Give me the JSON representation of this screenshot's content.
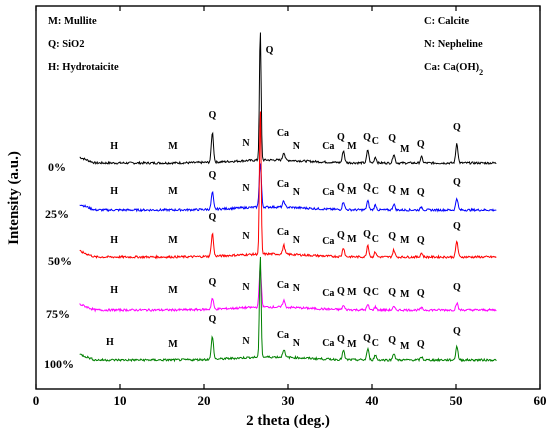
{
  "chart_data": {
    "type": "line",
    "xlabel": "2 theta (deg.)",
    "ylabel": "Intensity (a.u.)",
    "xlim": [
      0,
      60
    ],
    "xticks": [
      0,
      10,
      20,
      30,
      40,
      50,
      60
    ],
    "legend": {
      "left": [
        {
          "text": "M: Mullite"
        },
        {
          "text": "Q: SiO2"
        },
        {
          "text": "H: Hydrotaicite"
        }
      ],
      "right": [
        {
          "text": "C: Calcite"
        },
        {
          "text": "N: Nepheline"
        },
        {
          "text": "Ca:  Ca(OH)",
          "sub": "2"
        }
      ]
    },
    "series": [
      {
        "name": "0%",
        "color": "#000000",
        "baseline": 0,
        "peaks": [
          [
            21.0,
            30
          ],
          [
            26.7,
            130
          ],
          [
            29.5,
            8
          ],
          [
            36.6,
            12
          ],
          [
            39.5,
            13
          ],
          [
            40.4,
            6
          ],
          [
            42.6,
            9
          ],
          [
            45.9,
            6
          ],
          [
            50.1,
            20
          ]
        ],
        "labels": [
          [
            "H",
            9.3,
            14
          ],
          [
            "M",
            16.3,
            14
          ],
          [
            "Q",
            21.0,
            45
          ],
          [
            "N",
            25.0,
            17
          ],
          [
            "Q",
            27.8,
            110
          ],
          [
            "Ca",
            29.4,
            27
          ],
          [
            "N",
            31.0,
            14
          ],
          [
            "Ca",
            34.8,
            14
          ],
          [
            "Q",
            36.3,
            23
          ],
          [
            "M",
            37.6,
            14
          ],
          [
            "Q",
            39.4,
            23
          ],
          [
            "C",
            40.4,
            19
          ],
          [
            "Q",
            42.4,
            22
          ],
          [
            "M",
            43.9,
            11
          ],
          [
            "Q",
            45.8,
            16
          ],
          [
            "Q",
            50.1,
            33
          ]
        ]
      },
      {
        "name": "25%",
        "color": "#0000ff",
        "baseline": 0,
        "peaks": [
          [
            21.0,
            17
          ],
          [
            26.7,
            44
          ],
          [
            29.5,
            6
          ],
          [
            36.6,
            8
          ],
          [
            39.5,
            9
          ],
          [
            40.4,
            5
          ],
          [
            42.6,
            6
          ],
          [
            45.9,
            3
          ],
          [
            50.1,
            12
          ]
        ],
        "labels": [
          [
            "H",
            9.3,
            16
          ],
          [
            "M",
            16.3,
            16
          ],
          [
            "Q",
            21.0,
            32
          ],
          [
            "N",
            25.0,
            19
          ],
          [
            "Ca",
            29.4,
            23
          ],
          [
            "N",
            31.0,
            15
          ],
          [
            "Ca",
            34.8,
            15
          ],
          [
            "Q",
            36.3,
            20
          ],
          [
            "M",
            37.6,
            16
          ],
          [
            "Q",
            39.4,
            20
          ],
          [
            "C",
            40.4,
            16
          ],
          [
            "Q",
            42.4,
            18
          ],
          [
            "M",
            43.9,
            15
          ],
          [
            "Q",
            45.8,
            15
          ],
          [
            "Q",
            50.1,
            25
          ]
        ]
      },
      {
        "name": "50%",
        "color": "#ff0000",
        "baseline": 0,
        "peaks": [
          [
            21.0,
            23
          ],
          [
            26.7,
            145
          ],
          [
            29.5,
            9
          ],
          [
            36.6,
            9
          ],
          [
            39.5,
            12
          ],
          [
            40.4,
            5
          ],
          [
            42.6,
            7
          ],
          [
            45.9,
            4
          ],
          [
            50.1,
            16
          ]
        ],
        "labels": [
          [
            "H",
            9.3,
            14
          ],
          [
            "M",
            16.3,
            14
          ],
          [
            "Q",
            21.0,
            37
          ],
          [
            "N",
            25.0,
            18
          ],
          [
            "Ca",
            29.4,
            22
          ],
          [
            "N",
            31.0,
            14
          ],
          [
            "Ca",
            34.8,
            13
          ],
          [
            "Q",
            36.3,
            19
          ],
          [
            "M",
            37.6,
            15
          ],
          [
            "Q",
            39.4,
            20
          ],
          [
            "C",
            40.4,
            15
          ],
          [
            "Q",
            42.4,
            18
          ],
          [
            "M",
            43.9,
            14
          ],
          [
            "Q",
            45.8,
            14
          ],
          [
            "Q",
            50.1,
            28
          ]
        ]
      },
      {
        "name": "75%",
        "color": "#ff00ff",
        "baseline": 0,
        "peaks": [
          [
            21.0,
            11
          ],
          [
            26.7,
            40
          ],
          [
            29.5,
            7
          ],
          [
            36.6,
            4
          ],
          [
            39.5,
            5
          ],
          [
            40.4,
            3
          ],
          [
            42.6,
            3
          ],
          [
            45.9,
            2
          ],
          [
            50.1,
            7
          ]
        ],
        "labels": [
          [
            "H",
            9.3,
            17
          ],
          [
            "M",
            16.3,
            17
          ],
          [
            "Q",
            21.0,
            25
          ],
          [
            "N",
            25.0,
            20
          ],
          [
            "Ca",
            29.4,
            22
          ],
          [
            "N",
            31.0,
            19
          ],
          [
            "Ca",
            34.8,
            14
          ],
          [
            "Q",
            36.3,
            16
          ],
          [
            "M",
            37.6,
            15
          ],
          [
            "Q",
            39.4,
            16
          ],
          [
            "C",
            40.4,
            15
          ],
          [
            "Q",
            42.4,
            15
          ],
          [
            "M",
            43.9,
            13
          ],
          [
            "Q",
            45.8,
            14
          ],
          [
            "Q",
            50.1,
            20
          ]
        ]
      },
      {
        "name": "100%",
        "color": "#008000",
        "baseline": 0,
        "peaks": [
          [
            21.0,
            23
          ],
          [
            26.7,
            103
          ],
          [
            29.5,
            8
          ],
          [
            36.6,
            9
          ],
          [
            39.5,
            11
          ],
          [
            40.4,
            5
          ],
          [
            42.6,
            7
          ],
          [
            45.9,
            3
          ],
          [
            50.1,
            14
          ]
        ],
        "labels": [
          [
            "H",
            8.8,
            15
          ],
          [
            "M",
            16.3,
            13
          ],
          [
            "Q",
            21.0,
            38
          ],
          [
            "N",
            25.0,
            16
          ],
          [
            "Ca",
            29.4,
            22
          ],
          [
            "N",
            31.0,
            14
          ],
          [
            "Ca",
            34.8,
            14
          ],
          [
            "Q",
            36.3,
            18
          ],
          [
            "M",
            37.6,
            13
          ],
          [
            "Q",
            39.4,
            19
          ],
          [
            "C",
            40.4,
            14
          ],
          [
            "Q",
            42.4,
            17
          ],
          [
            "M",
            43.9,
            11
          ],
          [
            "Q",
            45.8,
            13
          ],
          [
            "Q",
            50.1,
            26
          ]
        ]
      }
    ]
  }
}
